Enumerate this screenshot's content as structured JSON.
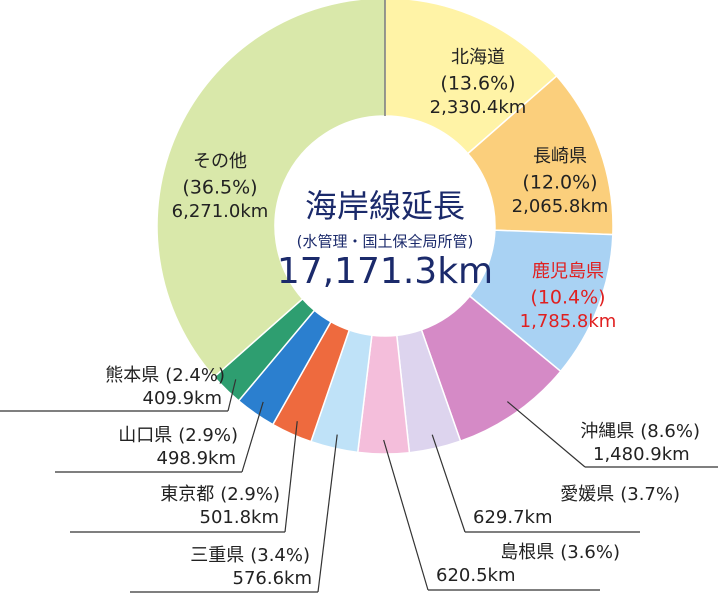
{
  "chart_data": {
    "type": "donut",
    "center_title": "海岸線延長",
    "center_subtitle": "(水管理・国土保全局所管)",
    "total": 17171.3,
    "total_label": "17,171.3km",
    "categories": [
      "北海道",
      "長崎県",
      "鹿児島県",
      "沖縄県",
      "愛媛県",
      "島根県",
      "三重県",
      "東京都",
      "山口県",
      "熊本県",
      "その他"
    ],
    "values": [
      2330.4,
      2065.8,
      1785.8,
      1480.9,
      629.7,
      620.5,
      576.6,
      501.8,
      498.9,
      409.9,
      6271.0
    ],
    "value_labels": [
      "2,330.4km",
      "2,065.8km",
      "1,785.8km",
      "1,480.9km",
      "629.7km",
      "620.5km",
      "576.6km",
      "501.8km",
      "498.9km",
      "409.9km",
      "6,271.0km"
    ],
    "percents": [
      13.6,
      12.0,
      10.4,
      8.6,
      3.7,
      3.6,
      3.4,
      2.9,
      2.9,
      2.4,
      36.5
    ],
    "percent_labels": [
      "(13.6%)",
      "(12.0%)",
      "(10.4%)",
      "(8.6%)",
      "(3.7%)",
      "(3.6%)",
      "(3.4%)",
      "(2.9%)",
      "(2.9%)",
      "(2.4%)",
      "(36.5%)"
    ],
    "colors": [
      "#fff3a6",
      "#fbcf7c",
      "#a9d2f3",
      "#d58ac6",
      "#ddd4ee",
      "#f4bedb",
      "#bfe2f8",
      "#ee6a3e",
      "#2b7fcf",
      "#2e9e70",
      "#d9e8aa"
    ],
    "label_colors": [
      "#222222",
      "#222222",
      "#e02020",
      "#222222",
      "#222222",
      "#222222",
      "#222222",
      "#222222",
      "#222222",
      "#222222",
      "#222222"
    ]
  }
}
